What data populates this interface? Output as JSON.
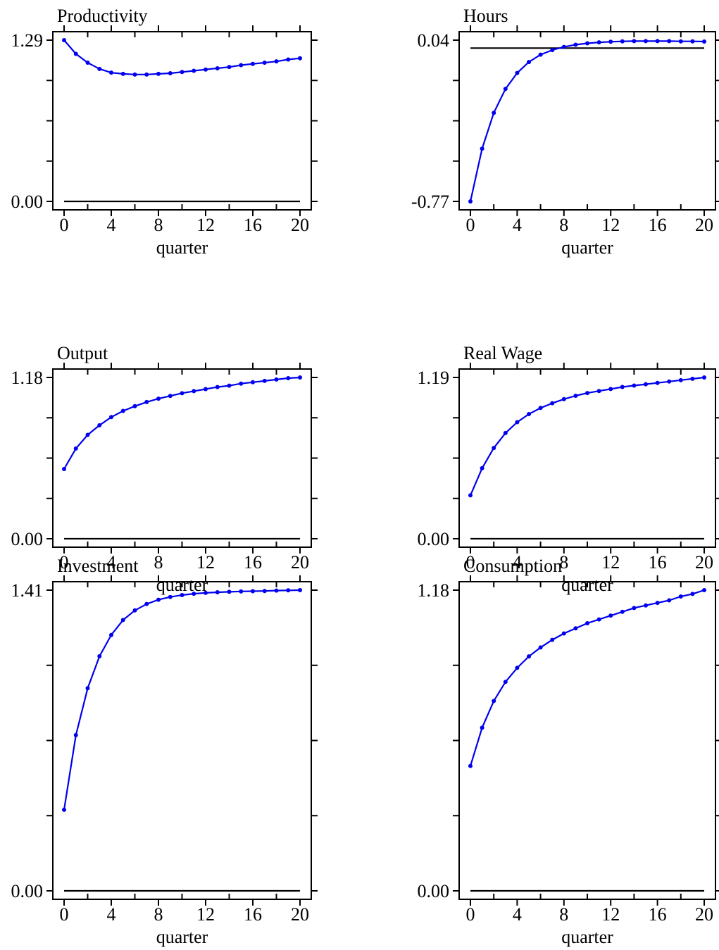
{
  "colors": {
    "series": "#0000ee",
    "axes": "#000000",
    "reference_line": "#000000"
  },
  "chart_data": [
    {
      "type": "line",
      "title": "Productivity",
      "xlabel": "quarter",
      "x": [
        0,
        1,
        2,
        3,
        4,
        5,
        6,
        7,
        8,
        9,
        10,
        11,
        12,
        13,
        14,
        15,
        16,
        17,
        18,
        19,
        20
      ],
      "xticks": [
        0,
        4,
        8,
        12,
        16,
        20
      ],
      "xlim": [
        0,
        20
      ],
      "ylim": [
        0.0,
        1.29
      ],
      "yticks_labeled": [
        "0.00",
        "1.29"
      ],
      "series": [
        {
          "values": [
            1.29,
            1.18,
            1.11,
            1.06,
            1.03,
            1.02,
            1.015,
            1.015,
            1.02,
            1.025,
            1.035,
            1.045,
            1.055,
            1.065,
            1.075,
            1.09,
            1.1,
            1.11,
            1.12,
            1.135,
            1.145
          ]
        }
      ],
      "reference_line": {
        "y": 0.0
      }
    },
    {
      "type": "line",
      "title": "Hours",
      "xlabel": "quarter",
      "x": [
        0,
        1,
        2,
        3,
        4,
        5,
        6,
        7,
        8,
        9,
        10,
        11,
        12,
        13,
        14,
        15,
        16,
        17,
        18,
        19,
        20
      ],
      "xticks": [
        0,
        4,
        8,
        12,
        16,
        20
      ],
      "xlim": [
        0,
        20
      ],
      "ylim": [
        -0.77,
        0.04
      ],
      "yticks_labeled": [
        "-0.77",
        "0.04"
      ],
      "series": [
        {
          "values": [
            -0.77,
            -0.505,
            -0.325,
            -0.205,
            -0.125,
            -0.07,
            -0.033,
            -0.01,
            0.006,
            0.017,
            0.024,
            0.029,
            0.032,
            0.034,
            0.035,
            0.035,
            0.035,
            0.035,
            0.034,
            0.034,
            0.033
          ]
        }
      ],
      "reference_line": {
        "y": 0.0
      }
    },
    {
      "type": "line",
      "title": "Output",
      "xlabel": "quarter",
      "x": [
        0,
        1,
        2,
        3,
        4,
        5,
        6,
        7,
        8,
        9,
        10,
        11,
        12,
        13,
        14,
        15,
        16,
        17,
        18,
        19,
        20
      ],
      "xticks": [
        0,
        4,
        8,
        12,
        16,
        20
      ],
      "xlim": [
        0,
        20
      ],
      "ylim": [
        0.0,
        1.18
      ],
      "yticks_labeled": [
        "0.00",
        "1.18"
      ],
      "series": [
        {
          "values": [
            0.51,
            0.66,
            0.76,
            0.83,
            0.89,
            0.935,
            0.97,
            1.0,
            1.025,
            1.045,
            1.065,
            1.08,
            1.095,
            1.11,
            1.12,
            1.135,
            1.145,
            1.155,
            1.165,
            1.175,
            1.18
          ]
        }
      ],
      "reference_line": {
        "y": 0.0
      }
    },
    {
      "type": "line",
      "title": "Real Wage",
      "xlabel": "quarter",
      "x": [
        0,
        1,
        2,
        3,
        4,
        5,
        6,
        7,
        8,
        9,
        10,
        11,
        12,
        13,
        14,
        15,
        16,
        17,
        18,
        19,
        20
      ],
      "xticks": [
        0,
        4,
        8,
        12,
        16,
        20
      ],
      "xlim": [
        0,
        20
      ],
      "ylim": [
        0.0,
        1.19
      ],
      "yticks_labeled": [
        "0.00",
        "1.19"
      ],
      "series": [
        {
          "values": [
            0.32,
            0.52,
            0.67,
            0.78,
            0.86,
            0.92,
            0.965,
            1.0,
            1.03,
            1.055,
            1.075,
            1.09,
            1.105,
            1.12,
            1.13,
            1.14,
            1.15,
            1.16,
            1.17,
            1.18,
            1.19
          ]
        }
      ],
      "reference_line": {
        "y": 0.0
      }
    },
    {
      "type": "line",
      "title": "Investment",
      "xlabel": "quarter",
      "x": [
        0,
        1,
        2,
        3,
        4,
        5,
        6,
        7,
        8,
        9,
        10,
        11,
        12,
        13,
        14,
        15,
        16,
        17,
        18,
        19,
        20
      ],
      "xticks": [
        0,
        4,
        8,
        12,
        16,
        20
      ],
      "xlim": [
        0,
        20
      ],
      "ylim": [
        0.0,
        1.41
      ],
      "yticks_labeled": [
        "0.00",
        "1.41"
      ],
      "series": [
        {
          "values": [
            0.38,
            0.73,
            0.95,
            1.1,
            1.2,
            1.27,
            1.315,
            1.345,
            1.365,
            1.378,
            1.387,
            1.393,
            1.397,
            1.4,
            1.402,
            1.404,
            1.405,
            1.406,
            1.408,
            1.409,
            1.41
          ]
        }
      ],
      "reference_line": {
        "y": 0.0
      }
    },
    {
      "type": "line",
      "title": "Consumption",
      "xlabel": "quarter",
      "x": [
        0,
        1,
        2,
        3,
        4,
        5,
        6,
        7,
        8,
        9,
        10,
        11,
        12,
        13,
        14,
        15,
        16,
        17,
        18,
        19,
        20
      ],
      "xticks": [
        0,
        4,
        8,
        12,
        16,
        20
      ],
      "xlim": [
        0,
        20
      ],
      "ylim": [
        0.0,
        1.18
      ],
      "yticks_labeled": [
        "0.00",
        "1.18"
      ],
      "series": [
        {
          "values": [
            0.49,
            0.64,
            0.745,
            0.82,
            0.875,
            0.92,
            0.955,
            0.985,
            1.01,
            1.03,
            1.05,
            1.065,
            1.08,
            1.095,
            1.11,
            1.12,
            1.13,
            1.14,
            1.155,
            1.165,
            1.18
          ]
        }
      ],
      "reference_line": {
        "y": 0.0
      }
    }
  ]
}
